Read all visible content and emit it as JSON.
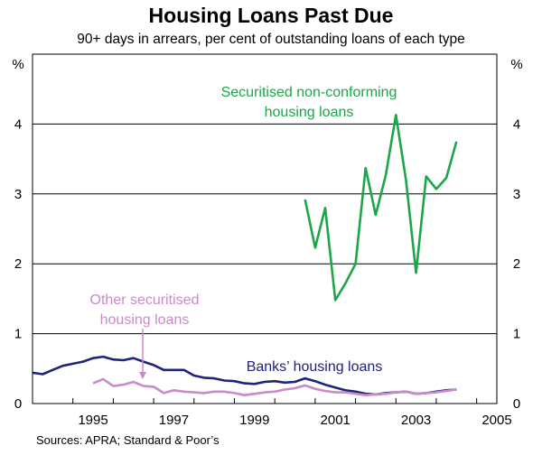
{
  "chart_data": {
    "type": "line",
    "title": "Housing Loans Past Due",
    "subtitle": "90+ days in arrears, per cent of outstanding loans of each type",
    "ylabel_left": "%",
    "ylabel_right": "%",
    "ylim": [
      0,
      5
    ],
    "yticks": [
      "0",
      "1",
      "2",
      "3",
      "4"
    ],
    "xlim": [
      1994,
      2005.5
    ],
    "xticks": [
      "1995",
      "1997",
      "1999",
      "2001",
      "2003",
      "2005"
    ],
    "grid": "horizontal",
    "source": "Sources: APRA; Standard & Poor’s",
    "series": [
      {
        "name": "Banks’ housing loans",
        "color": "#1f237a",
        "x": [
          1994.0,
          1994.25,
          1994.5,
          1994.75,
          1995.0,
          1995.25,
          1995.5,
          1995.75,
          1996.0,
          1996.25,
          1996.5,
          1996.75,
          1997.0,
          1997.25,
          1997.5,
          1997.75,
          1998.0,
          1998.25,
          1998.5,
          1998.75,
          1999.0,
          1999.25,
          1999.5,
          1999.75,
          2000.0,
          2000.25,
          2000.5,
          2000.75,
          2001.0,
          2001.25,
          2001.5,
          2001.75,
          2002.0,
          2002.25,
          2002.5,
          2002.75,
          2003.0,
          2003.25,
          2003.5,
          2003.75,
          2004.0,
          2004.25,
          2004.5
        ],
        "values": [
          0.44,
          0.42,
          0.48,
          0.54,
          0.57,
          0.6,
          0.65,
          0.67,
          0.63,
          0.62,
          0.65,
          0.6,
          0.55,
          0.48,
          0.48,
          0.48,
          0.4,
          0.37,
          0.36,
          0.33,
          0.32,
          0.29,
          0.28,
          0.31,
          0.32,
          0.3,
          0.31,
          0.36,
          0.32,
          0.27,
          0.23,
          0.19,
          0.17,
          0.14,
          0.13,
          0.15,
          0.16,
          0.17,
          0.14,
          0.15,
          0.17,
          0.19,
          0.2
        ]
      },
      {
        "name": "Other securitised housing loans",
        "color": "#c98ac9",
        "x": [
          1995.5,
          1995.75,
          1996.0,
          1996.25,
          1996.5,
          1996.75,
          1997.0,
          1997.25,
          1997.5,
          1997.75,
          1998.0,
          1998.25,
          1998.5,
          1998.75,
          1999.0,
          1999.25,
          1999.5,
          1999.75,
          2000.0,
          2000.25,
          2000.5,
          2000.75,
          2001.0,
          2001.25,
          2001.5,
          2001.75,
          2002.0,
          2002.25,
          2002.5,
          2002.75,
          2003.0,
          2003.25,
          2003.5,
          2003.75,
          2004.0,
          2004.25,
          2004.5
        ],
        "values": [
          0.29,
          0.35,
          0.25,
          0.27,
          0.31,
          0.25,
          0.24,
          0.15,
          0.19,
          0.17,
          0.16,
          0.15,
          0.17,
          0.17,
          0.15,
          0.12,
          0.14,
          0.16,
          0.17,
          0.2,
          0.22,
          0.26,
          0.21,
          0.18,
          0.16,
          0.16,
          0.14,
          0.12,
          0.13,
          0.14,
          0.16,
          0.17,
          0.14,
          0.15,
          0.16,
          0.18,
          0.2
        ]
      },
      {
        "name": "Securitised non-conforming housing loans",
        "color": "#1ba64a",
        "x": [
          2000.75,
          2001.0,
          2001.25,
          2001.5,
          2001.75,
          2002.0,
          2002.25,
          2002.5,
          2002.75,
          2003.0,
          2003.25,
          2003.5,
          2003.75,
          2004.0,
          2004.25,
          2004.5
        ],
        "values": [
          2.92,
          2.23,
          2.8,
          1.48,
          1.72,
          2.0,
          3.37,
          2.7,
          3.27,
          4.13,
          3.2,
          1.87,
          3.25,
          3.07,
          3.23,
          3.75
        ]
      }
    ],
    "annotations": [
      {
        "series": 2,
        "lines": [
          "Securitised non-conforming",
          "housing loans"
        ]
      },
      {
        "series": 1,
        "lines": [
          "Other securitised",
          "housing loans"
        ]
      },
      {
        "series": 0,
        "lines": [
          "Banks’ housing loans"
        ]
      }
    ]
  }
}
